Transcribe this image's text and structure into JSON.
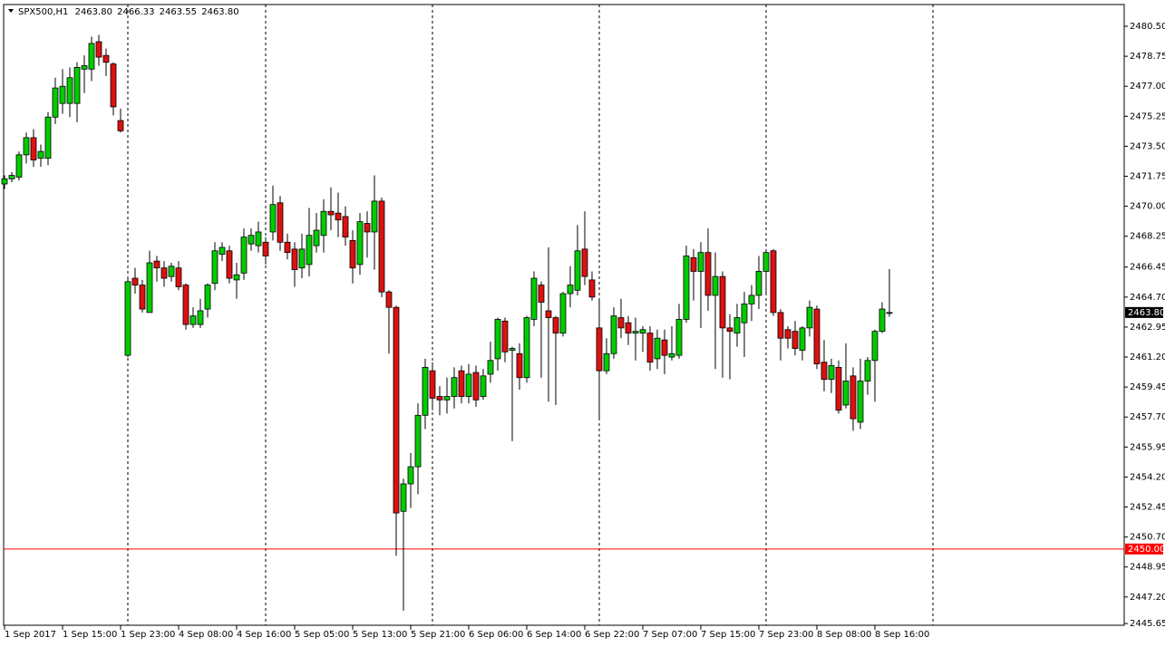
{
  "chart_data": {
    "type": "candlestick",
    "header": {
      "symbol": "SPX500,H1",
      "values": [
        "2463.80",
        "2466.33",
        "2463.55",
        "2463.80"
      ]
    },
    "up_color": "#00cc00",
    "down_color": "#dd1111",
    "wick_color": "#000000",
    "open": [
      2471.3,
      2471.6,
      2471.7,
      2473.0,
      2474.0,
      2472.8,
      2472.8,
      2475.2,
      2476.0,
      2476.0,
      2476.0,
      2478.0,
      2478.0,
      2479.6,
      2478.8,
      2478.3,
      2475.0,
      2461.3,
      2465.8,
      2465.4,
      2463.8,
      2466.8,
      2466.4,
      2465.9,
      2466.4,
      2465.4,
      2463.1,
      2463.1,
      2464.0,
      2465.5,
      2467.2,
      2467.4,
      2465.7,
      2466.1,
      2467.8,
      2467.7,
      2467.9,
      2468.5,
      2470.2,
      2467.9,
      2467.5,
      2466.4,
      2466.6,
      2467.7,
      2468.3,
      2469.7,
      2469.6,
      2469.4,
      2468.0,
      2466.6,
      2469.0,
      2468.5,
      2470.3,
      2465.0,
      2464.1,
      2452.2,
      2453.8,
      2454.8,
      2457.8,
      2460.4,
      2458.9,
      2458.7,
      2458.9,
      2460.4,
      2458.9,
      2460.3,
      2458.9,
      2460.2,
      2461.1,
      2463.3,
      2461.6,
      2461.4,
      2460.0,
      2463.4,
      2465.4,
      2463.9,
      2463.5,
      2462.6,
      2464.9,
      2465.1,
      2467.5,
      2465.7,
      2462.9,
      2460.4,
      2461.4,
      2463.5,
      2463.2,
      2462.6,
      2462.6,
      2462.6,
      2461.1,
      2462.2,
      2461.2,
      2461.3,
      2463.4,
      2467.0,
      2466.2,
      2467.3,
      2464.8,
      2465.9,
      2462.9,
      2462.6,
      2463.2,
      2464.3,
      2464.8,
      2466.2,
      2467.4,
      2463.8,
      2462.8,
      2462.7,
      2461.6,
      2462.9,
      2464.0,
      2460.9,
      2459.9,
      2460.6,
      2458.4,
      2460.1,
      2457.4,
      2459.8,
      2461.0,
      2462.7,
      2463.8
    ],
    "high": [
      2471.8,
      2472.0,
      2473.2,
      2474.3,
      2474.5,
      2473.6,
      2475.5,
      2477.5,
      2478.0,
      2478.1,
      2478.4,
      2478.8,
      2479.9,
      2480.0,
      2479.2,
      2478.4,
      2475.7,
      2465.9,
      2466.4,
      2465.7,
      2467.4,
      2467.1,
      2466.8,
      2466.7,
      2466.8,
      2465.5,
      2464.1,
      2464.6,
      2465.5,
      2467.9,
      2467.9,
      2467.7,
      2466.7,
      2468.7,
      2468.7,
      2469.1,
      2468.2,
      2471.2,
      2470.6,
      2468.4,
      2467.9,
      2468.4,
      2469.9,
      2469.6,
      2470.4,
      2471.1,
      2470.8,
      2470.0,
      2468.6,
      2469.6,
      2469.7,
      2471.8,
      2470.5,
      2465.1,
      2464.2,
      2454.1,
      2455.6,
      2458.5,
      2461.1,
      2460.9,
      2459.5,
      2460.0,
      2460.6,
      2460.7,
      2460.8,
      2460.7,
      2460.5,
      2462.1,
      2463.5,
      2463.5,
      2461.8,
      2462.0,
      2463.6,
      2466.2,
      2465.6,
      2467.6,
      2463.6,
      2465.0,
      2466.5,
      2468.9,
      2469.7,
      2466.2,
      2464.5,
      2462.3,
      2464.1,
      2464.6,
      2463.6,
      2463.5,
      2463.0,
      2463.0,
      2462.8,
      2462.8,
      2463.0,
      2464.3,
      2467.7,
      2467.5,
      2467.9,
      2468.7,
      2467.3,
      2466.2,
      2463.7,
      2464.3,
      2465.0,
      2465.4,
      2467.1,
      2467.5,
      2467.5,
      2464.0,
      2463.0,
      2463.3,
      2463.0,
      2464.5,
      2464.2,
      2462.2,
      2461.1,
      2461.0,
      2462.0,
      2460.6,
      2461.1,
      2461.2,
      2462.8,
      2464.4,
      2466.33
    ],
    "low": [
      2471.0,
      2471.4,
      2471.5,
      2472.5,
      2472.3,
      2472.3,
      2472.4,
      2474.8,
      2475.4,
      2475.2,
      2474.9,
      2476.6,
      2477.3,
      2478.2,
      2477.6,
      2475.3,
      2474.3,
      2461.2,
      2464.9,
      2463.8,
      2463.8,
      2465.6,
      2465.3,
      2465.6,
      2465.1,
      2462.8,
      2462.9,
      2462.9,
      2463.5,
      2465.1,
      2466.8,
      2465.5,
      2464.6,
      2465.7,
      2467.4,
      2467.3,
      2466.6,
      2468.0,
      2467.4,
      2466.9,
      2465.3,
      2465.8,
      2465.9,
      2467.3,
      2467.3,
      2468.6,
      2468.2,
      2467.7,
      2465.5,
      2466.0,
      2467.0,
      2466.3,
      2464.7,
      2461.4,
      2449.6,
      2446.4,
      2452.4,
      2453.2,
      2457.0,
      2458.1,
      2457.8,
      2457.9,
      2458.2,
      2458.5,
      2458.5,
      2458.3,
      2458.7,
      2459.7,
      2460.4,
      2460.9,
      2456.3,
      2459.3,
      2459.7,
      2463.0,
      2460.0,
      2458.6,
      2458.4,
      2462.4,
      2464.1,
      2464.8,
      2465.4,
      2464.5,
      2457.6,
      2460.2,
      2461.1,
      2462.3,
      2461.9,
      2461.0,
      2461.5,
      2460.4,
      2460.5,
      2460.2,
      2461.0,
      2461.1,
      2463.2,
      2464.5,
      2462.9,
      2463.9,
      2460.5,
      2460.0,
      2459.9,
      2461.8,
      2461.2,
      2463.3,
      2464.0,
      2464.8,
      2463.6,
      2461.0,
      2461.7,
      2461.3,
      2461.0,
      2462.4,
      2460.5,
      2459.2,
      2459.1,
      2457.9,
      2458.2,
      2456.9,
      2457.0,
      2459.0,
      2458.6,
      2462.6,
      2463.55
    ],
    "close": [
      2471.6,
      2471.8,
      2473.0,
      2474.0,
      2472.7,
      2473.2,
      2475.2,
      2476.9,
      2477.0,
      2477.5,
      2478.1,
      2478.2,
      2479.5,
      2478.7,
      2478.4,
      2475.8,
      2474.4,
      2465.6,
      2465.4,
      2464.0,
      2466.7,
      2466.4,
      2465.8,
      2466.5,
      2465.3,
      2463.1,
      2463.6,
      2463.9,
      2465.4,
      2467.4,
      2467.6,
      2465.8,
      2466.0,
      2468.2,
      2468.3,
      2468.5,
      2467.1,
      2470.1,
      2467.9,
      2467.3,
      2466.3,
      2467.5,
      2468.3,
      2468.6,
      2469.7,
      2469.5,
      2469.2,
      2468.2,
      2466.4,
      2469.1,
      2468.5,
      2470.3,
      2465.0,
      2464.1,
      2452.1,
      2453.8,
      2454.8,
      2457.8,
      2460.6,
      2458.8,
      2458.7,
      2458.9,
      2460.0,
      2458.9,
      2460.2,
      2458.7,
      2460.1,
      2461.0,
      2463.4,
      2461.5,
      2461.7,
      2460.0,
      2463.5,
      2465.8,
      2464.4,
      2463.5,
      2462.6,
      2464.9,
      2465.4,
      2467.4,
      2465.9,
      2464.7,
      2460.4,
      2461.4,
      2463.6,
      2462.9,
      2462.6,
      2462.7,
      2462.8,
      2460.9,
      2462.3,
      2461.3,
      2461.4,
      2463.4,
      2467.1,
      2466.2,
      2467.3,
      2464.8,
      2465.9,
      2462.9,
      2462.7,
      2463.5,
      2464.3,
      2464.8,
      2466.2,
      2467.3,
      2463.8,
      2462.3,
      2462.3,
      2461.7,
      2462.9,
      2464.1,
      2460.8,
      2459.9,
      2460.7,
      2458.1,
      2459.8,
      2457.6,
      2459.8,
      2461.0,
      2462.7,
      2464.0,
      2463.8
    ],
    "ylim": [
      2445.55,
      2481.77
    ],
    "yticks": [
      {
        "value": 2480.5,
        "label": "2480.50"
      },
      {
        "value": 2478.75,
        "label": "2478.75"
      },
      {
        "value": 2477,
        "label": "2477.00"
      },
      {
        "value": 2475.25,
        "label": "2475.25"
      },
      {
        "value": 2473.5,
        "label": "2473.50"
      },
      {
        "value": 2471.75,
        "label": "2471.75"
      },
      {
        "value": 2470,
        "label": "2470.00"
      },
      {
        "value": 2468.25,
        "label": "2468.25"
      },
      2466.45,
      {
        "value": 2464.7,
        "label": "2464.70"
      },
      2462.95,
      {
        "value": 2461.2,
        "label": "2461.20"
      },
      2459.45,
      {
        "value": 2457.7,
        "label": "2457.70"
      },
      2455.95,
      {
        "value": 2454.2,
        "label": "2454.20"
      },
      2452.45,
      {
        "value": 2450.7,
        "label": "2450.70"
      },
      2448.95,
      {
        "value": 2447.2,
        "label": "2447.20"
      },
      2445.65
    ],
    "xticks": [
      {
        "value": 0,
        "label": "1 Sep 2017"
      },
      {
        "value": 8,
        "label": "1 Sep 15:00"
      },
      {
        "value": 16,
        "label": "1 Sep 23:00"
      },
      {
        "value": 24,
        "label": "4 Sep 08:00"
      },
      {
        "value": 32,
        "label": "4 Sep 16:00"
      },
      {
        "value": 40,
        "label": "5 Sep 05:00"
      },
      {
        "value": 48,
        "label": "5 Sep 13:00"
      },
      {
        "value": 56,
        "label": "5 Sep 21:00"
      },
      {
        "value": 64,
        "label": "6 Sep 06:00"
      },
      {
        "value": 72,
        "label": "6 Sep 14:00"
      },
      {
        "value": 80,
        "label": "6 Sep 22:00"
      },
      {
        "value": 88,
        "label": "7 Sep 07:00"
      },
      {
        "value": 96,
        "label": "7 Sep 15:00"
      },
      {
        "value": 104,
        "label": "7 Sep 23:00"
      },
      {
        "value": 112,
        "label": "8 Sep 08:00"
      },
      {
        "value": 120,
        "label": "8 Sep 16:00"
      }
    ],
    "current_price": {
      "value": 2463.8,
      "label": "2463.80"
    },
    "hline": {
      "value": 2450,
      "label": "2450.00",
      "color": "#ff0000"
    }
  }
}
